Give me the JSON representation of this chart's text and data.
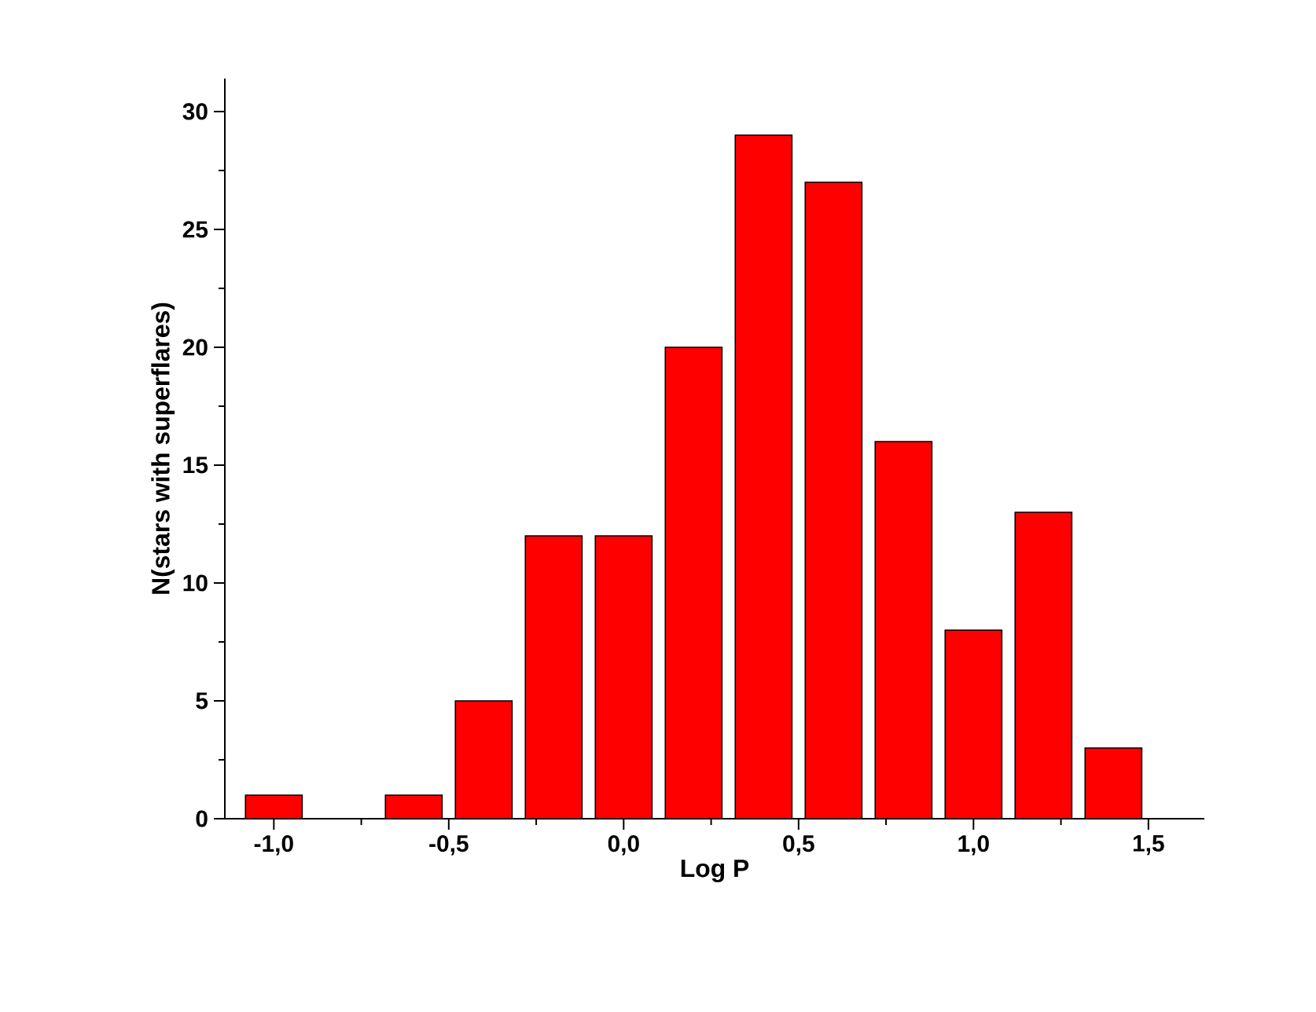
{
  "chart_data": {
    "type": "histogram",
    "xlabel": "Log P",
    "ylabel": "N(stars with superflares)",
    "bins": [
      -1.1,
      -0.9,
      -0.7,
      -0.5,
      -0.3,
      -0.1,
      0.1,
      0.3,
      0.5,
      0.7,
      0.9,
      1.1,
      1.3,
      1.5
    ],
    "values": [
      1,
      0,
      1,
      5,
      12,
      12,
      20,
      29,
      27,
      16,
      8,
      13,
      3
    ],
    "color": "#ff0000",
    "xlim": [
      -1.14,
      1.66
    ],
    "ylim": [
      0,
      31.4
    ],
    "xticks": [
      {
        "value": -1.0,
        "label": "-1,0"
      },
      {
        "value": -0.5,
        "label": "-0,5"
      },
      {
        "value": 0.0,
        "label": "0,0"
      },
      {
        "value": 0.5,
        "label": "0,5"
      },
      {
        "value": 1.0,
        "label": "1,0"
      },
      {
        "value": 1.5,
        "label": "1,5"
      }
    ],
    "yticks": [
      0,
      5,
      10,
      15,
      20,
      25,
      30
    ]
  }
}
